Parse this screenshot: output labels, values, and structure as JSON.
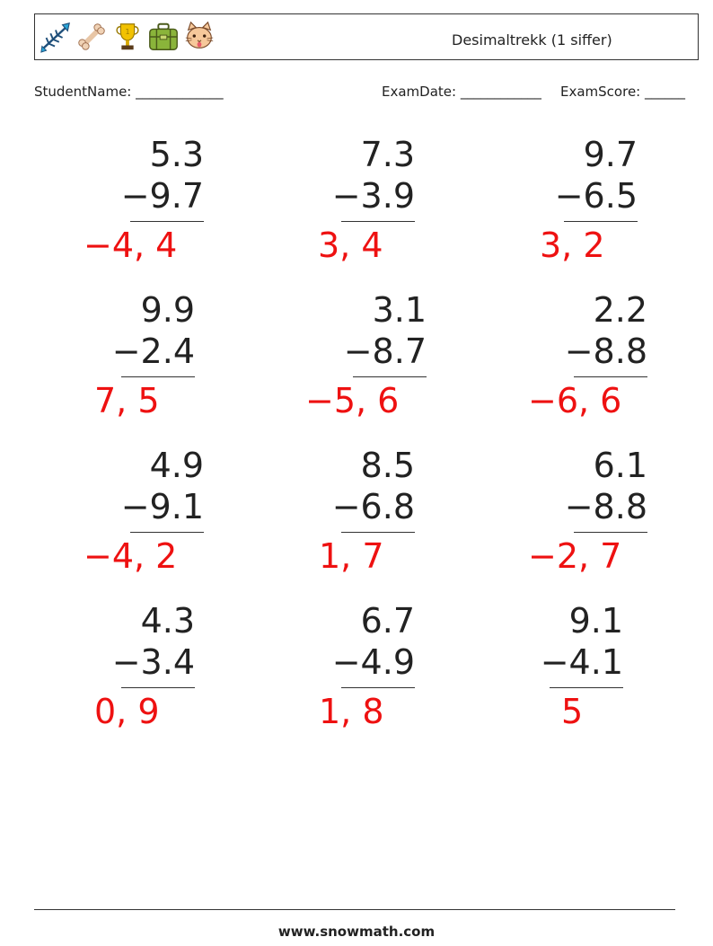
{
  "header": {
    "title": "Desimaltrekk (1 siffer)",
    "icons": [
      "fishbone-icon",
      "bone-icon",
      "trophy-icon",
      "toolbox-icon",
      "cat-icon"
    ]
  },
  "info": {
    "student_name": "StudentName: _____________",
    "exam_date": "ExamDate: ____________",
    "exam_score": "ExamScore: ______"
  },
  "problems": [
    {
      "top": "5.3",
      "bottom": "−9.7",
      "answer": "−4, 4"
    },
    {
      "top": "7.3",
      "bottom": "−3.9",
      "answer": "3, 4"
    },
    {
      "top": "9.7",
      "bottom": "−6.5",
      "answer": "3, 2"
    },
    {
      "top": "9.9",
      "bottom": "−2.4",
      "answer": "7, 5"
    },
    {
      "top": "3.1",
      "bottom": "−8.7",
      "answer": "−5, 6"
    },
    {
      "top": "2.2",
      "bottom": "−8.8",
      "answer": "−6, 6"
    },
    {
      "top": "4.9",
      "bottom": "−9.1",
      "answer": "−4, 2"
    },
    {
      "top": "8.5",
      "bottom": "−6.8",
      "answer": "1, 7"
    },
    {
      "top": "6.1",
      "bottom": "−8.8",
      "answer": "−2, 7"
    },
    {
      "top": "4.3",
      "bottom": "−3.4",
      "answer": "0, 9"
    },
    {
      "top": "6.7",
      "bottom": "−4.9",
      "answer": "1, 8"
    },
    {
      "top": "9.1",
      "bottom": "−4.1",
      "answer": "5"
    }
  ],
  "footer": {
    "site": "www.snowmath.com"
  }
}
